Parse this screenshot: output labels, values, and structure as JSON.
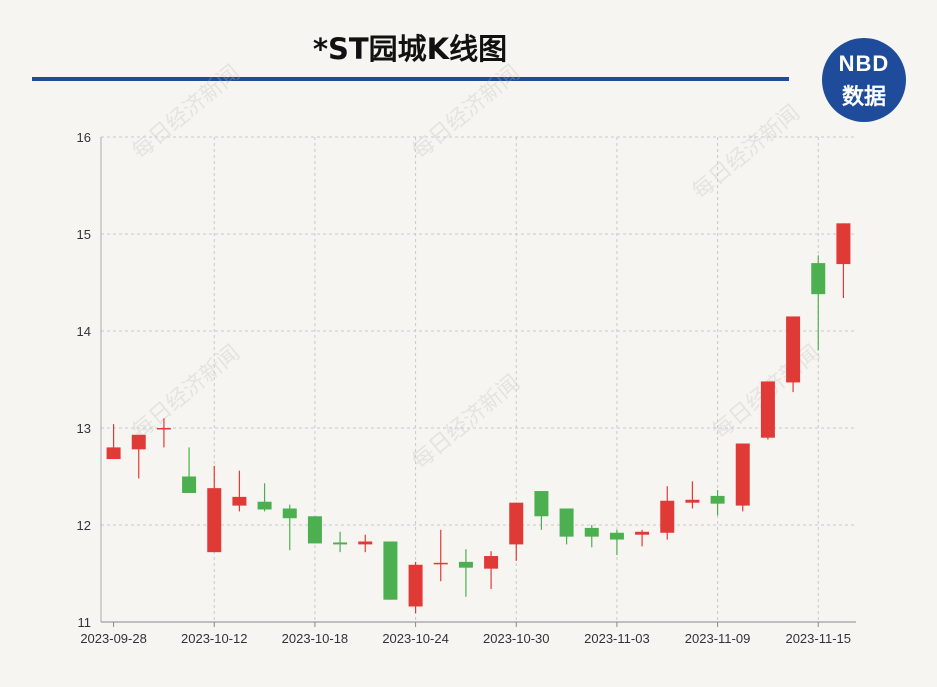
{
  "title": "*ST园城K线图",
  "logo": {
    "line1": "NBD",
    "line2": "数据"
  },
  "watermark": "每日经济新闻",
  "colors": {
    "up": "#e03a36",
    "down": "#4caf50",
    "rule": "#1e4c9a",
    "grid": "#c9c9c9"
  },
  "chart_data": {
    "type": "candlestick",
    "title": "*ST园城K线图",
    "ylim": [
      11,
      16
    ],
    "yticks": [
      11,
      12,
      13,
      14,
      15,
      16
    ],
    "xtick_labels": [
      "2023-09-28",
      "2023-10-12",
      "2023-10-18",
      "2023-10-24",
      "2023-10-30",
      "2023-11-03",
      "2023-11-09",
      "2023-11-15"
    ],
    "xtick_indices": [
      0,
      4,
      8,
      12,
      16,
      20,
      24,
      28
    ],
    "grid": true,
    "candles": [
      {
        "o": 12.68,
        "h": 13.04,
        "l": 12.68,
        "c": 12.8
      },
      {
        "o": 12.78,
        "h": 12.93,
        "l": 12.48,
        "c": 12.93
      },
      {
        "o": 12.99,
        "h": 13.1,
        "l": 12.8,
        "c": 13.0
      },
      {
        "o": 12.5,
        "h": 12.8,
        "l": 12.33,
        "c": 12.33
      },
      {
        "o": 11.72,
        "h": 12.61,
        "l": 11.72,
        "c": 12.38
      },
      {
        "o": 12.2,
        "h": 12.56,
        "l": 12.14,
        "c": 12.29
      },
      {
        "o": 12.24,
        "h": 12.43,
        "l": 12.14,
        "c": 12.16
      },
      {
        "o": 12.17,
        "h": 12.21,
        "l": 11.74,
        "c": 12.07
      },
      {
        "o": 12.09,
        "h": 12.09,
        "l": 11.81,
        "c": 11.81
      },
      {
        "o": 11.82,
        "h": 11.93,
        "l": 11.72,
        "c": 11.8
      },
      {
        "o": 11.8,
        "h": 11.9,
        "l": 11.72,
        "c": 11.83
      },
      {
        "o": 11.83,
        "h": 11.83,
        "l": 11.23,
        "c": 11.23
      },
      {
        "o": 11.16,
        "h": 11.62,
        "l": 11.09,
        "c": 11.59
      },
      {
        "o": 11.6,
        "h": 11.95,
        "l": 11.42,
        "c": 11.61
      },
      {
        "o": 11.62,
        "h": 11.75,
        "l": 11.26,
        "c": 11.56
      },
      {
        "o": 11.55,
        "h": 11.73,
        "l": 11.34,
        "c": 11.68
      },
      {
        "o": 11.8,
        "h": 12.23,
        "l": 11.63,
        "c": 12.23
      },
      {
        "o": 12.35,
        "h": 12.35,
        "l": 11.95,
        "c": 12.09
      },
      {
        "o": 12.17,
        "h": 12.17,
        "l": 11.8,
        "c": 11.88
      },
      {
        "o": 11.97,
        "h": 12.0,
        "l": 11.77,
        "c": 11.88
      },
      {
        "o": 11.92,
        "h": 11.95,
        "l": 11.69,
        "c": 11.85
      },
      {
        "o": 11.9,
        "h": 11.95,
        "l": 11.78,
        "c": 11.93
      },
      {
        "o": 11.92,
        "h": 12.4,
        "l": 11.85,
        "c": 12.25
      },
      {
        "o": 12.23,
        "h": 12.45,
        "l": 12.17,
        "c": 12.26
      },
      {
        "o": 12.3,
        "h": 12.36,
        "l": 12.1,
        "c": 12.22
      },
      {
        "o": 12.2,
        "h": 12.84,
        "l": 12.14,
        "c": 12.84
      },
      {
        "o": 12.9,
        "h": 13.48,
        "l": 12.88,
        "c": 13.48
      },
      {
        "o": 13.47,
        "h": 14.15,
        "l": 13.37,
        "c": 14.15
      },
      {
        "o": 14.7,
        "h": 14.78,
        "l": 13.8,
        "c": 14.38
      },
      {
        "o": 14.69,
        "h": 15.11,
        "l": 14.34,
        "c": 15.11
      }
    ]
  }
}
